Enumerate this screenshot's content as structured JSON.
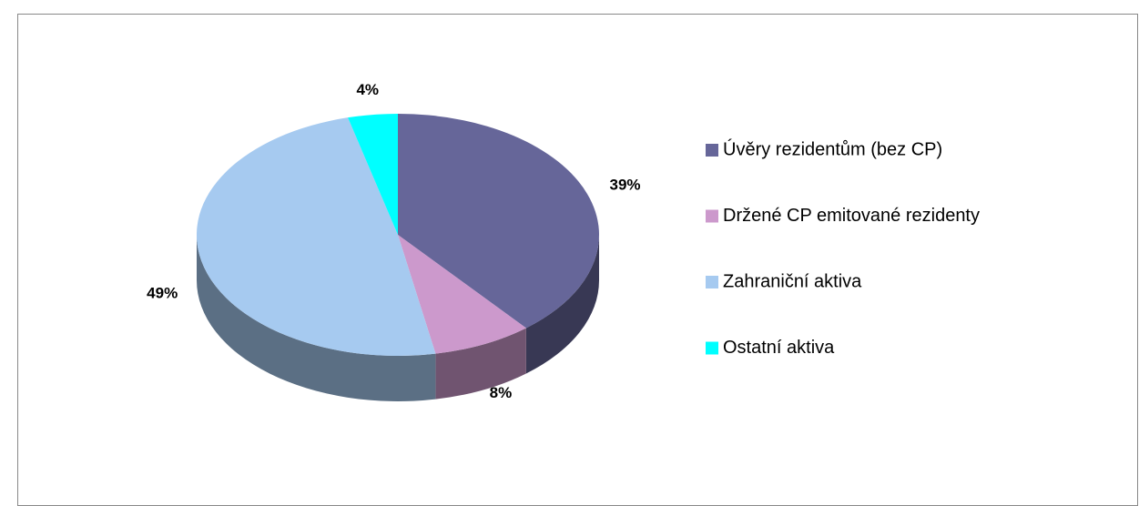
{
  "chart_data": {
    "type": "pie3d",
    "categories": [
      "Úvěry rezidentům (bez CP)",
      "Držené CP emitované rezidenty",
      "Zahraniční aktiva",
      "Ostatní aktiva"
    ],
    "values": [
      39,
      8,
      49,
      4
    ],
    "value_labels": [
      "39%",
      "8%",
      "49%",
      "4%"
    ],
    "colors": [
      "#666699",
      "#cc99cc",
      "#a6caf0",
      "#00ffff"
    ],
    "legend": "right"
  }
}
